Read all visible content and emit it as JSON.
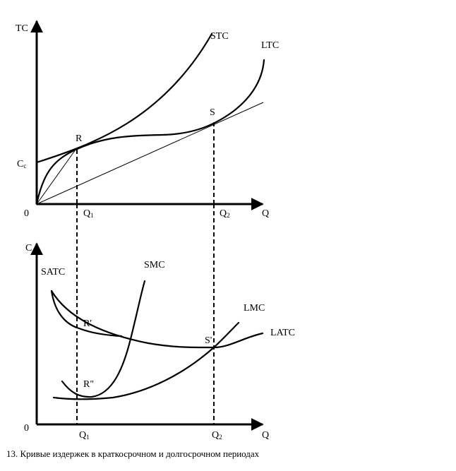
{
  "top": {
    "y_axis": "TC",
    "x_axis": "Q",
    "origin": "0",
    "fixed_cost": {
      "letter": "C",
      "sub": "c"
    },
    "q1": {
      "letter": "Q",
      "sub": "1"
    },
    "q2": {
      "letter": "Q",
      "sub": "2"
    },
    "stc": "STC",
    "ltc": "LTC",
    "point_r": "R",
    "point_s": "S"
  },
  "bottom": {
    "y_axis": "C",
    "x_axis": "Q",
    "origin": "0",
    "q1": {
      "letter": "Q",
      "sub": "1"
    },
    "q2": {
      "letter": "Q",
      "sub": "2"
    },
    "satc": "SATC",
    "smc": "SMC",
    "lmc": "LMC",
    "latc": "LATC",
    "point_r1": "R'",
    "point_r2": "R\"",
    "point_s1": "S'"
  },
  "caption": "13. Кривые издержек в краткосрочном и долгосрочном периодах"
}
